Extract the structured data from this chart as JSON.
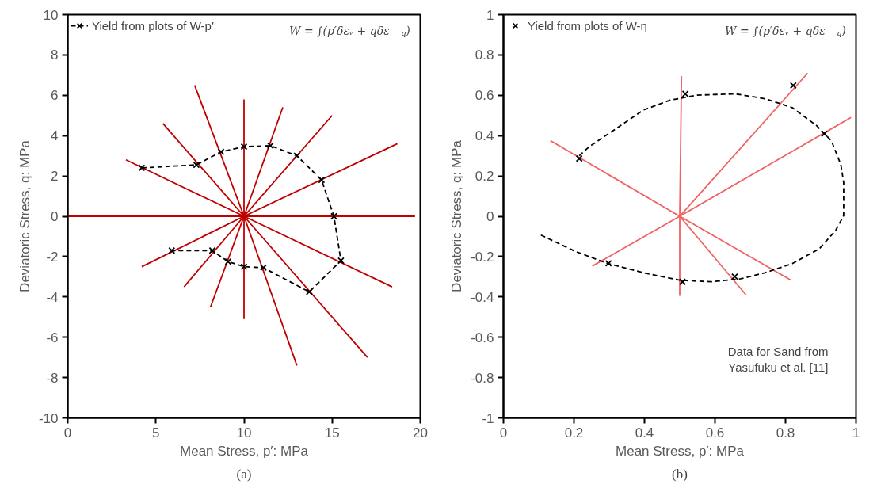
{
  "chart_data": [
    {
      "type": "line",
      "title": "(a)",
      "xlabel": "Mean Stress, p′: MPa",
      "ylabel": "Deviatoric Stress, q: MPa",
      "xlim": [
        0,
        20
      ],
      "ylim": [
        -10,
        10
      ],
      "xticks": [
        0,
        5,
        10,
        15,
        20
      ],
      "yticks": [
        -10,
        -8,
        -6,
        -4,
        -2,
        0,
        2,
        4,
        6,
        8,
        10
      ],
      "grid": false,
      "legend": "top left",
      "annotations": [
        "W = ∫(p′δεᵥ + qδε$_{q}$)"
      ],
      "series": [
        {
          "color": "#c00000",
          "x": [
            3.3,
            10,
            18.4
          ],
          "values": [
            2.8,
            0,
            -3.5
          ]
        },
        {
          "color": "#c00000",
          "x": [
            5.4,
            10,
            17.0
          ],
          "values": [
            4.6,
            0,
            -7.0
          ]
        },
        {
          "color": "#c00000",
          "x": [
            7.2,
            10,
            13.0
          ],
          "values": [
            6.5,
            0,
            -7.4
          ]
        },
        {
          "color": "#c00000",
          "x": [
            10,
            10,
            10
          ],
          "values": [
            5.8,
            0,
            -5.1
          ]
        },
        {
          "color": "#c00000",
          "x": [
            12.2,
            10,
            8.1
          ],
          "values": [
            5.4,
            0,
            -4.5
          ]
        },
        {
          "color": "#c00000",
          "x": [
            15.0,
            10,
            6.6
          ],
          "values": [
            5.0,
            0,
            -3.5
          ]
        },
        {
          "color": "#c00000",
          "x": [
            18.7,
            10,
            4.2
          ],
          "values": [
            3.6,
            0,
            -2.5
          ]
        },
        {
          "color": "#c00000",
          "x": [
            19.7,
            10,
            0
          ],
          "values": [
            0,
            0,
            0
          ]
        },
        {
          "name": "Yield from plots of W-p′",
          "color": "#000000",
          "line_style": "dashed",
          "marker": "cross",
          "x": [
            4.2,
            7.3,
            8.7,
            10,
            11.5,
            13,
            14.4,
            15.1,
            15.5,
            13.7,
            11.1,
            10,
            9.1,
            8.2,
            5.9
          ],
          "values": [
            2.4,
            2.55,
            3.2,
            3.45,
            3.5,
            3.0,
            1.8,
            0,
            -2.2,
            -3.75,
            -2.55,
            -2.5,
            -2.25,
            -1.7,
            -1.7
          ]
        }
      ]
    },
    {
      "type": "line",
      "title": "(b)",
      "xlabel": "Mean Stress, p′: MPa",
      "ylabel": "Deviatoric Stress, q: MPa",
      "xlim": [
        0,
        1
      ],
      "ylim": [
        -1,
        1
      ],
      "xticks": [
        0,
        0.2,
        0.4,
        0.6,
        0.8,
        1
      ],
      "yticks": [
        -1,
        -0.8,
        -0.6,
        -0.4,
        -0.2,
        0,
        0.2,
        0.4,
        0.6,
        0.8,
        1
      ],
      "grid": false,
      "legend": "top left",
      "annotations": [
        "W = ∫(p′δεᵥ + qδε$_{q}$)",
        "Data for Sand from\nYasufuku et al. [11]"
      ],
      "series": [
        {
          "color": "#f06262",
          "x": [
            0.133,
            0.5,
            0.814
          ],
          "values": [
            0.375,
            0,
            -0.315
          ]
        },
        {
          "color": "#f06262",
          "x": [
            0.505,
            0.5,
            0.5
          ],
          "values": [
            0.695,
            0,
            -0.395
          ]
        },
        {
          "color": "#f06262",
          "x": [
            0.5,
            0.863
          ],
          "values": [
            0,
            0.71
          ]
        },
        {
          "color": "#f06262",
          "x": [
            0.986,
            0.5,
            0.252
          ],
          "values": [
            0.49,
            0,
            -0.247
          ]
        },
        {
          "color": "#f06262",
          "x": [
            0.5,
            0.688
          ],
          "values": [
            0,
            -0.39
          ]
        },
        {
          "color": "#000000",
          "line_style": "dashed",
          "x": [
            0.215,
            0.243,
            0.32,
            0.397,
            0.473,
            0.55,
            0.658,
            0.742,
            0.819,
            0.888,
            0.93,
            0.957,
            0.965,
            0.965,
            0.942,
            0.896,
            0.819,
            0.742,
            0.673,
            0.589,
            0.499,
            0.397,
            0.297,
            0.205,
            0.101
          ],
          "values": [
            0.3,
            0.345,
            0.435,
            0.527,
            0.576,
            0.601,
            0.607,
            0.583,
            0.539,
            0.45,
            0.375,
            0.256,
            0.167,
            0.003,
            -0.071,
            -0.161,
            -0.235,
            -0.28,
            -0.31,
            -0.325,
            -0.317,
            -0.28,
            -0.235,
            -0.175,
            -0.089
          ]
        },
        {
          "type": "scatter",
          "name": "Yield from plots of W-η",
          "color": "#000000",
          "marker": "cross",
          "x": [
            0.215,
            0.516,
            0.822,
            0.91,
            0.656,
            0.508,
            0.298
          ],
          "values": [
            0.286,
            0.607,
            0.649,
            0.409,
            -0.299,
            -0.325,
            -0.233
          ]
        }
      ]
    }
  ]
}
